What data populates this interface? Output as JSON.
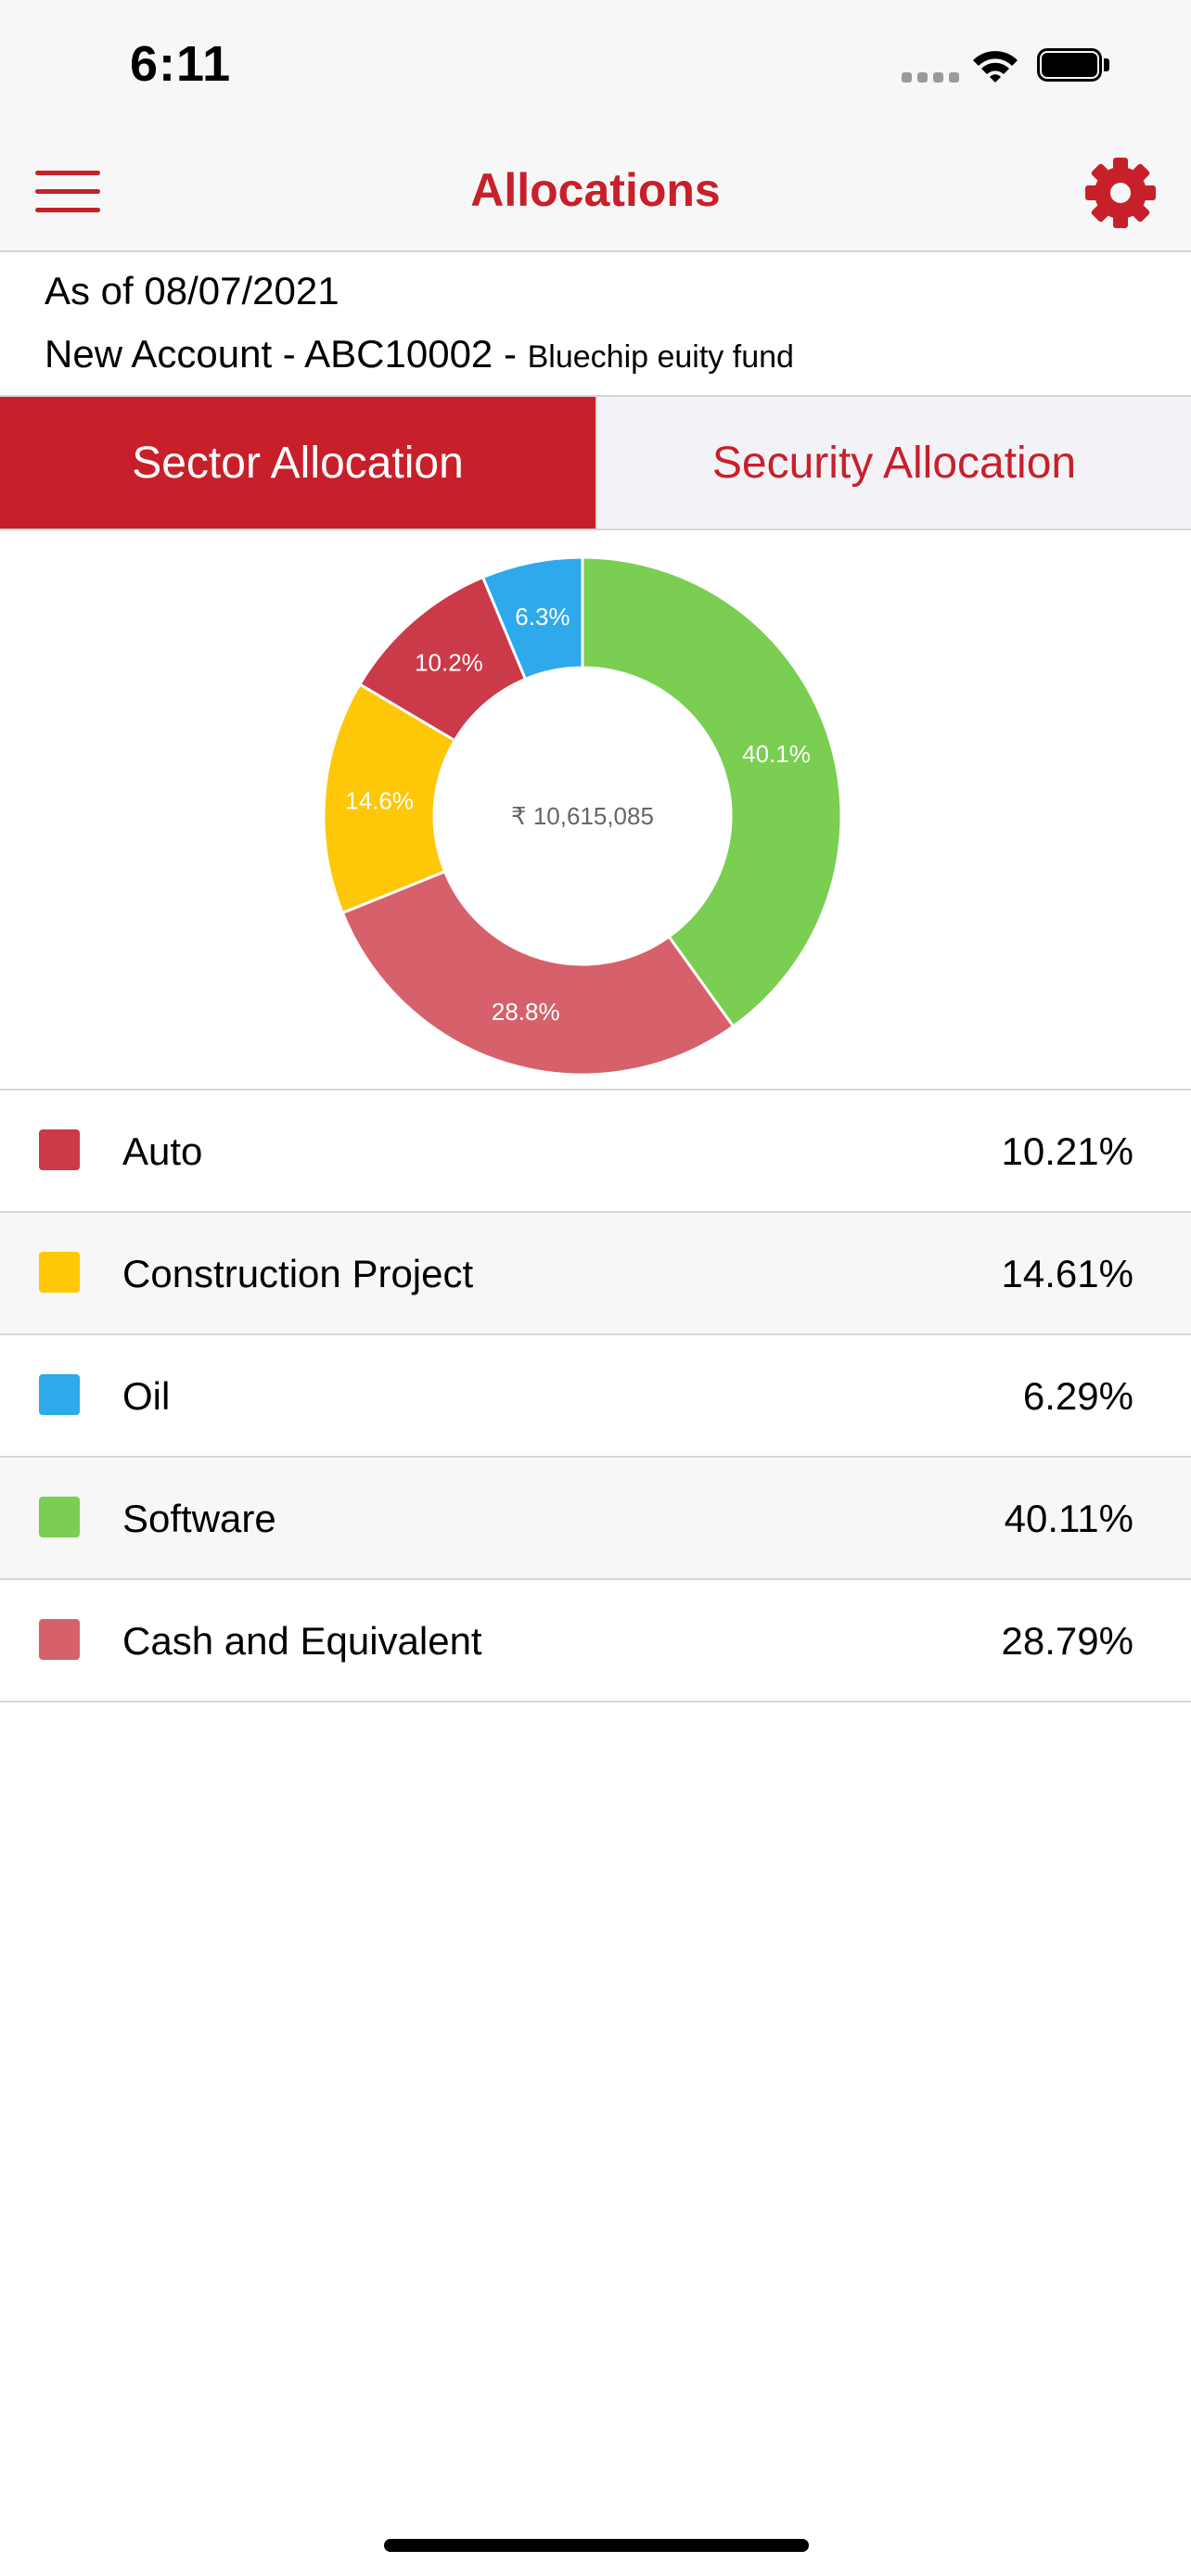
{
  "status_bar": {
    "time": "6:11"
  },
  "nav": {
    "title": "Allocations",
    "menu_icon": "hamburger-menu-icon",
    "settings_icon": "gear-icon"
  },
  "account": {
    "as_of": "As of 08/07/2021",
    "account_label": "New Account - ABC10002 - ",
    "fund_name": "Bluechip euity fund"
  },
  "tabs": [
    {
      "label": "Sector Allocation",
      "active": true
    },
    {
      "label": "Security Allocation",
      "active": false
    }
  ],
  "chart_data": {
    "type": "pie",
    "center_label": "₹ 10,615,085",
    "slices": [
      {
        "label": "Software",
        "value": 40.11,
        "display": "40.1%",
        "color": "#7ace52"
      },
      {
        "label": "Cash and Equivalent",
        "value": 28.79,
        "display": "28.8%",
        "color": "#d6616b"
      },
      {
        "label": "Construction Project",
        "value": 14.61,
        "display": "14.6%",
        "color": "#fec707"
      },
      {
        "label": "Auto",
        "value": 10.21,
        "display": "10.2%",
        "color": "#cb3a49"
      },
      {
        "label": "Oil",
        "value": 6.29,
        "display": "6.3%",
        "color": "#2ea9ec"
      }
    ]
  },
  "legend": [
    {
      "label": "Auto",
      "value": "10.21%",
      "color": "#cb3a49"
    },
    {
      "label": "Construction Project",
      "value": "14.61%",
      "color": "#fec707"
    },
    {
      "label": "Oil",
      "value": "6.29%",
      "color": "#2ea9ec"
    },
    {
      "label": "Software",
      "value": "40.11%",
      "color": "#7ace52"
    },
    {
      "label": "Cash and Equivalent",
      "value": "28.79%",
      "color": "#d6616b"
    }
  ],
  "colors": {
    "accent": "#c8202a"
  }
}
